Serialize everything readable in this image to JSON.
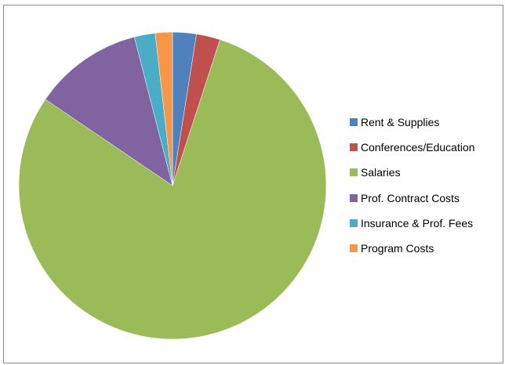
{
  "chart_data": {
    "type": "pie",
    "title": "",
    "categories": [
      "Rent & Supplies",
      "Conferences/Education",
      "Salaries",
      "Prof. Contract Costs",
      "Insurance & Prof. Fees",
      "Program Costs"
    ],
    "values": [
      2.5,
      2.5,
      79.5,
      11.5,
      2.2,
      1.8
    ],
    "colors": [
      "#4f81bd",
      "#c0504d",
      "#9bbb59",
      "#8064a2",
      "#4bacc6",
      "#f79646"
    ],
    "legend_position": "right",
    "start_angle": "top",
    "direction": "clockwise"
  }
}
